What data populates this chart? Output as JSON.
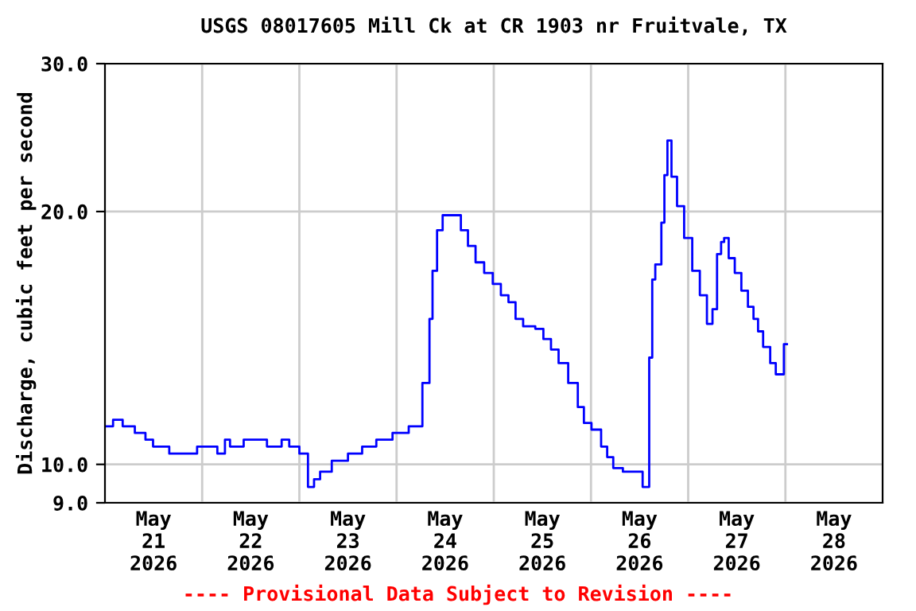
{
  "chart_data": {
    "type": "step",
    "title": "USGS 08017605 Mill Ck at CR 1903 nr Fruitvale, TX",
    "ylabel": "Discharge, cubic feet per second",
    "annotations": [
      "---- Provisional Data Subject to Revision ----"
    ],
    "log": "y",
    "grid": "y",
    "legend": false,
    "xlim": [
      "2026-05-21T00:00",
      "2026-05-29T00:00"
    ],
    "xticks": [
      {
        "value": "2026-05-21T12:00",
        "label": "May\n21\n2026"
      },
      {
        "value": "2026-05-22T12:00",
        "label": "May\n22\n2026"
      },
      {
        "value": "2026-05-23T12:00",
        "label": "May\n23\n2026"
      },
      {
        "value": "2026-05-24T12:00",
        "label": "May\n24\n2026"
      },
      {
        "value": "2026-05-25T12:00",
        "label": "May\n25\n2026"
      },
      {
        "value": "2026-05-26T12:00",
        "label": "May\n26\n2026"
      },
      {
        "value": "2026-05-27T12:00",
        "label": "May\n27\n2026"
      },
      {
        "value": "2026-05-28T12:00",
        "label": "May\n28\n2026"
      }
    ],
    "ylim": [
      9,
      30
    ],
    "yticks": [
      {
        "value": 9,
        "label": "9.0"
      },
      {
        "value": 10,
        "label": "10.0"
      },
      {
        "value": 20,
        "label": "20.0"
      },
      {
        "value": 30,
        "label": "30.0"
      }
    ],
    "ref_lines": [
      {
        "axis": "x",
        "value": "2026-05-22",
        "color": "#cccccc"
      },
      {
        "axis": "x",
        "value": "2026-05-23",
        "color": "#cccccc"
      },
      {
        "axis": "x",
        "value": "2026-05-24",
        "color": "#cccccc"
      },
      {
        "axis": "x",
        "value": "2026-05-25",
        "color": "#cccccc"
      },
      {
        "axis": "x",
        "value": "2026-05-26",
        "color": "#cccccc"
      },
      {
        "axis": "x",
        "value": "2026-05-27",
        "color": "#cccccc"
      },
      {
        "axis": "x",
        "value": "2026-05-28",
        "color": "#cccccc"
      }
    ],
    "series": [
      {
        "color": "#0000ff",
        "x": [
          "2026-05-21T01:00",
          "2026-05-21T03:00",
          "2026-05-21T05:45",
          "2026-05-21T09:00",
          "2026-05-21T11:00",
          "2026-05-21T12:45",
          "2026-05-21T19:00",
          "2026-05-22T02:30",
          "2026-05-22T05:00",
          "2026-05-22T06:15",
          "2026-05-22T07:30",
          "2026-05-22T13:00",
          "2026-05-22T19:00",
          "2026-05-22T20:15",
          "2026-05-22T22:45",
          "2026-05-23T01:15",
          "2026-05-23T03:00",
          "2026-05-23T04:15",
          "2026-05-23T06:00",
          "2026-05-23T10:00",
          "2026-05-23T14:00",
          "2026-05-23T17:00",
          "2026-05-23T21:00",
          "2026-05-24T01:00",
          "2026-05-24T05:00",
          "2026-05-24T07:45",
          "2026-05-24T08:30",
          "2026-05-24T09:15",
          "2026-05-24T10:45",
          "2026-05-24T12:00",
          "2026-05-24T15:00",
          "2026-05-24T16:45",
          "2026-05-24T18:30",
          "2026-05-24T20:30",
          "2026-05-24T22:45",
          "2026-05-25T00:45",
          "2026-05-25T02:45",
          "2026-05-25T04:30",
          "2026-05-25T06:15",
          "2026-05-25T08:15",
          "2026-05-25T09:15",
          "2026-05-25T11:15",
          "2026-05-25T13:15",
          "2026-05-25T15:00",
          "2026-05-25T17:00",
          "2026-05-25T19:45",
          "2026-05-25T21:45",
          "2026-05-25T22:45",
          "2026-05-26T01:30",
          "2026-05-26T03:30",
          "2026-05-26T04:30",
          "2026-05-26T06:30",
          "2026-05-26T09:15",
          "2026-05-26T11:30",
          "2026-05-26T14:00",
          "2026-05-26T14:45",
          "2026-05-26T15:30",
          "2026-05-26T16:15",
          "2026-05-26T17:00",
          "2026-05-26T17:45",
          "2026-05-26T18:30",
          "2026-05-26T19:15",
          "2026-05-26T20:30",
          "2026-05-26T22:00",
          "2026-05-27T00:00",
          "2026-05-27T02:00",
          "2026-05-27T03:45",
          "2026-05-27T05:30",
          "2026-05-27T06:30",
          "2026-05-27T07:45",
          "2026-05-27T08:30",
          "2026-05-27T09:15",
          "2026-05-27T10:45",
          "2026-05-27T12:15",
          "2026-05-27T14:00",
          "2026-05-27T15:30",
          "2026-05-27T16:45",
          "2026-05-27T17:45",
          "2026-05-27T19:15",
          "2026-05-27T21:15",
          "2026-05-27T22:00",
          "2026-05-27T23:15",
          "2026-05-28T00:00"
        ],
        "values": [
          11.1,
          11.3,
          11.1,
          10.9,
          10.7,
          10.5,
          10.3,
          10.5,
          10.3,
          10.7,
          10.5,
          10.7,
          10.5,
          10.7,
          10.5,
          10.3,
          9.4,
          9.6,
          9.8,
          10.1,
          10.3,
          10.5,
          10.7,
          10.9,
          11.1,
          12.5,
          14.9,
          17.0,
          19.0,
          19.8,
          19.8,
          19.0,
          18.2,
          17.4,
          16.9,
          16.4,
          15.9,
          15.6,
          14.9,
          14.6,
          14.6,
          14.5,
          14.1,
          13.7,
          13.2,
          12.5,
          11.7,
          11.2,
          11.0,
          10.5,
          10.2,
          9.9,
          9.8,
          9.8,
          9.4,
          13.4,
          16.6,
          17.3,
          17.3,
          19.4,
          22.1,
          24.3,
          22.0,
          20.3,
          18.6,
          17.0,
          15.9,
          14.7,
          15.3,
          17.8,
          18.4,
          18.6,
          17.6,
          16.9,
          16.1,
          15.4,
          14.9,
          14.4,
          13.8,
          13.2,
          12.8,
          12.8,
          13.9
        ]
      }
    ]
  }
}
